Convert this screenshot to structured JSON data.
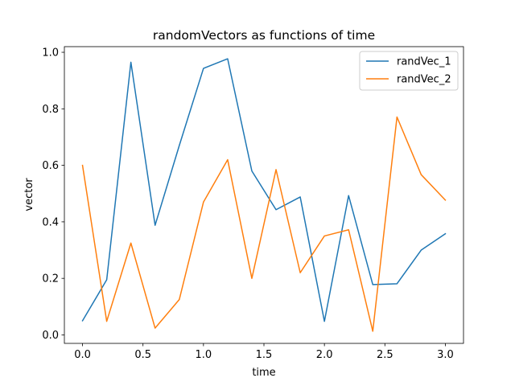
{
  "chart_data": {
    "type": "line",
    "title": "randomVectors as functions of time",
    "xlabel": "time",
    "ylabel": "vector",
    "xlim": [
      -0.15,
      3.15
    ],
    "ylim": [
      -0.03,
      1.02
    ],
    "x_ticks": [
      0.0,
      0.5,
      1.0,
      1.5,
      2.0,
      2.5,
      3.0
    ],
    "x_tick_labels": [
      "0.0",
      "0.5",
      "1.0",
      "1.5",
      "2.0",
      "2.5",
      "3.0"
    ],
    "y_ticks": [
      0.0,
      0.2,
      0.4,
      0.6,
      0.8,
      1.0
    ],
    "y_tick_labels": [
      "0.0",
      "0.2",
      "0.4",
      "0.6",
      "0.8",
      "1.0"
    ],
    "grid": false,
    "legend_position": "top-right",
    "x": [
      0.0,
      0.2,
      0.4,
      0.6,
      0.8,
      1.0,
      1.2,
      1.4,
      1.6,
      1.8,
      2.0,
      2.2,
      2.4,
      2.6,
      2.8,
      3.0
    ],
    "series": [
      {
        "name": "randVec_1",
        "color": "#1f77b4",
        "values": [
          0.05,
          0.195,
          0.965,
          0.388,
          0.67,
          0.943,
          0.977,
          0.58,
          0.443,
          0.488,
          0.048,
          0.493,
          0.178,
          0.181,
          0.3,
          0.358
        ]
      },
      {
        "name": "randVec_2",
        "color": "#ff7f0e",
        "values": [
          0.6,
          0.048,
          0.325,
          0.024,
          0.125,
          0.47,
          0.62,
          0.2,
          0.585,
          0.22,
          0.35,
          0.372,
          0.013,
          0.771,
          0.567,
          0.477
        ]
      }
    ]
  }
}
